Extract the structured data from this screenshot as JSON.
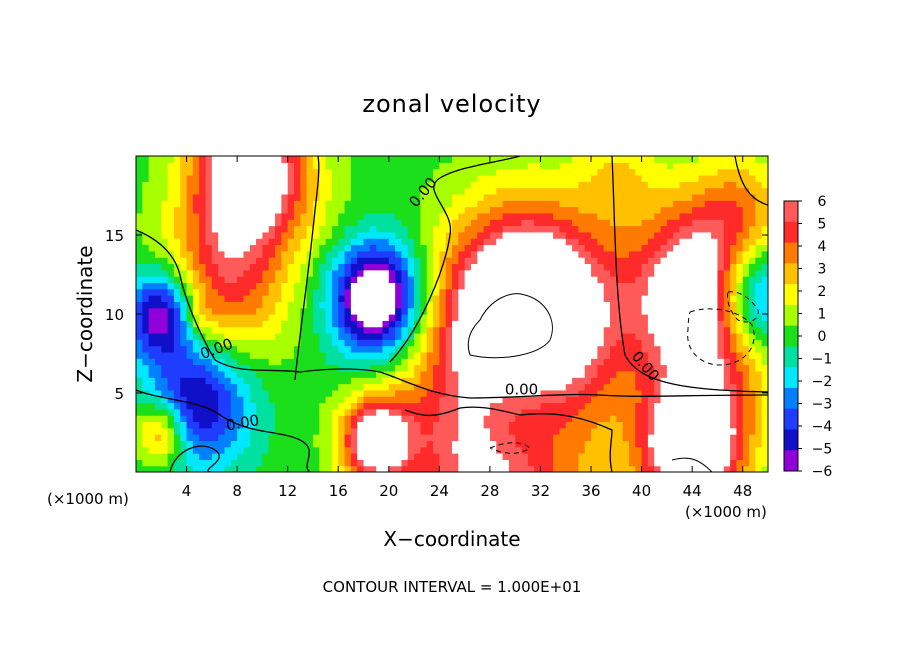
{
  "chart_data": {
    "type": "heatmap",
    "title": "zonal velocity",
    "xlabel": "X−coordinate",
    "ylabel": "Z−coordinate",
    "x_unit_left": "(×1000 m)",
    "x_unit_right": "(×1000 m)",
    "xlim": [
      0,
      50
    ],
    "ylim": [
      0,
      20
    ],
    "x_ticks": [
      4,
      8,
      12,
      16,
      20,
      24,
      28,
      32,
      36,
      40,
      44,
      48
    ],
    "y_ticks": [
      5,
      10,
      15
    ],
    "colorbar": {
      "labels": [
        "6",
        "5",
        "4",
        "3",
        "2",
        "1",
        "0",
        "−1",
        "−2",
        "−3",
        "−4",
        "−5",
        "−6"
      ],
      "values": [
        6,
        5,
        4,
        3,
        2,
        1,
        0,
        -1,
        -2,
        -3,
        -4,
        -5,
        -6
      ],
      "colors": [
        "#ff5a5a",
        "#ff2a2a",
        "#ff7a00",
        "#ffc000",
        "#ffff00",
        "#a8ff00",
        "#1adf1a",
        "#00e0a0",
        "#00e8ff",
        "#0080ff",
        "#1f3cff",
        "#1010c8",
        "#9000d8"
      ],
      "saturation_color": "#ffffff"
    },
    "contour_labels": [
      {
        "text": "0.00",
        "x": 6.5,
        "y": 7.5,
        "rotate": -20
      },
      {
        "text": "0.00",
        "x": 8.5,
        "y": 2.8,
        "rotate": -10
      },
      {
        "text": "0.00",
        "x": 23.0,
        "y": 17.5,
        "rotate": -50
      },
      {
        "text": "0.00",
        "x": 30.5,
        "y": 4.9,
        "rotate": 0
      },
      {
        "text": "0.00",
        "x": 40.0,
        "y": 6.5,
        "rotate": 50
      }
    ],
    "blobs": [
      {
        "x": 9,
        "y": 19,
        "r": 4.5,
        "v": 9
      },
      {
        "x": 7,
        "y": 12,
        "r": 5.0,
        "v": 5
      },
      {
        "x": 5,
        "y": 9.8,
        "r": 1.3,
        "v": 1.5
      },
      {
        "x": 19,
        "y": 11,
        "r": 3.5,
        "v": -9
      },
      {
        "x": 31,
        "y": 10,
        "r": 6.5,
        "v": 12
      },
      {
        "x": 46,
        "y": 11,
        "r": 6.0,
        "v": 12
      },
      {
        "x": 49,
        "y": 11,
        "r": 4.0,
        "v": -11
      },
      {
        "x": 2,
        "y": 10,
        "r": 2.8,
        "v": -7
      },
      {
        "x": 5,
        "y": 4.5,
        "r": 4.0,
        "v": -6
      },
      {
        "x": 19,
        "y": 2,
        "r": 2.8,
        "v": 8
      },
      {
        "x": 29,
        "y": 2,
        "r": 6.5,
        "v": 12
      },
      {
        "x": 30,
        "y": 3.8,
        "r": 5.0,
        "v": -10
      },
      {
        "x": 44,
        "y": 1.5,
        "r": 4.0,
        "v": 10
      },
      {
        "x": 2,
        "y": 2.5,
        "r": 2.0,
        "v": 5
      },
      {
        "x": 38,
        "y": 19,
        "r": 3.0,
        "v": 2
      },
      {
        "x": 15,
        "y": 16,
        "r": 3.0,
        "v": 0.5
      },
      {
        "x": 48,
        "y": 17,
        "r": 3.0,
        "v": 1.5
      }
    ],
    "contour_interval_text": "CONTOUR INTERVAL = 1.000E+01"
  }
}
